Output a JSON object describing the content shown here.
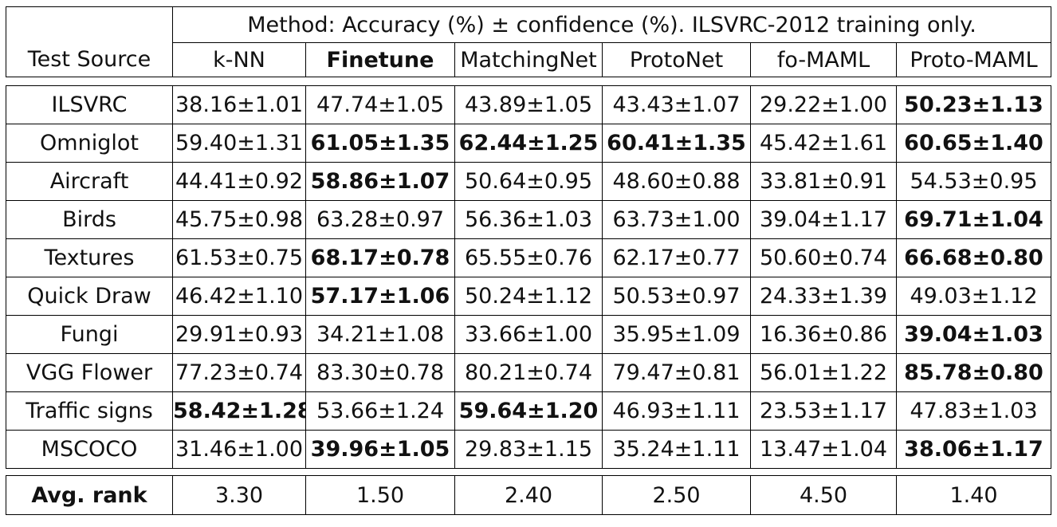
{
  "header": {
    "caption": "Method: Accuracy (%) ± confidence (%). ILSVRC-2012 training only.",
    "source_label": "Test Source",
    "methods": [
      {
        "label": "k-NN",
        "bold": false
      },
      {
        "label": "Finetune",
        "bold": true
      },
      {
        "label": "MatchingNet",
        "bold": false
      },
      {
        "label": "ProtoNet",
        "bold": false
      },
      {
        "label": "fo-MAML",
        "bold": false
      },
      {
        "label": "Proto-MAML",
        "bold": false
      }
    ]
  },
  "rows": [
    {
      "source": "ILSVRC",
      "cells": [
        {
          "v": "38.16±1.01",
          "b": false
        },
        {
          "v": "47.74±1.05",
          "b": false
        },
        {
          "v": "43.89±1.05",
          "b": false
        },
        {
          "v": "43.43±1.07",
          "b": false
        },
        {
          "v": "29.22±1.00",
          "b": false
        },
        {
          "v": "50.23±1.13",
          "b": true
        }
      ]
    },
    {
      "source": "Omniglot",
      "cells": [
        {
          "v": "59.40±1.31",
          "b": false
        },
        {
          "v": "61.05±1.35",
          "b": true
        },
        {
          "v": "62.44±1.25",
          "b": true
        },
        {
          "v": "60.41±1.35",
          "b": true
        },
        {
          "v": "45.42±1.61",
          "b": false
        },
        {
          "v": "60.65±1.40",
          "b": true
        }
      ]
    },
    {
      "source": "Aircraft",
      "cells": [
        {
          "v": "44.41±0.92",
          "b": false
        },
        {
          "v": "58.86±1.07",
          "b": true
        },
        {
          "v": "50.64±0.95",
          "b": false
        },
        {
          "v": "48.60±0.88",
          "b": false
        },
        {
          "v": "33.81±0.91",
          "b": false
        },
        {
          "v": "54.53±0.95",
          "b": false
        }
      ]
    },
    {
      "source": "Birds",
      "cells": [
        {
          "v": "45.75±0.98",
          "b": false
        },
        {
          "v": "63.28±0.97",
          "b": false
        },
        {
          "v": "56.36±1.03",
          "b": false
        },
        {
          "v": "63.73±1.00",
          "b": false
        },
        {
          "v": "39.04±1.17",
          "b": false
        },
        {
          "v": "69.71±1.04",
          "b": true
        }
      ]
    },
    {
      "source": "Textures",
      "cells": [
        {
          "v": "61.53±0.75",
          "b": false
        },
        {
          "v": "68.17±0.78",
          "b": true
        },
        {
          "v": "65.55±0.76",
          "b": false
        },
        {
          "v": "62.17±0.77",
          "b": false
        },
        {
          "v": "50.60±0.74",
          "b": false
        },
        {
          "v": "66.68±0.80",
          "b": true
        }
      ]
    },
    {
      "source": "Quick Draw",
      "cells": [
        {
          "v": "46.42±1.10",
          "b": false
        },
        {
          "v": "57.17±1.06",
          "b": true
        },
        {
          "v": "50.24±1.12",
          "b": false
        },
        {
          "v": "50.53±0.97",
          "b": false
        },
        {
          "v": "24.33±1.39",
          "b": false
        },
        {
          "v": "49.03±1.12",
          "b": false
        }
      ]
    },
    {
      "source": "Fungi",
      "cells": [
        {
          "v": "29.91±0.93",
          "b": false
        },
        {
          "v": "34.21±1.08",
          "b": false
        },
        {
          "v": "33.66±1.00",
          "b": false
        },
        {
          "v": "35.95±1.09",
          "b": false
        },
        {
          "v": "16.36±0.86",
          "b": false
        },
        {
          "v": "39.04±1.03",
          "b": true
        }
      ]
    },
    {
      "source": "VGG Flower",
      "cells": [
        {
          "v": "77.23±0.74",
          "b": false
        },
        {
          "v": "83.30±0.78",
          "b": false
        },
        {
          "v": "80.21±0.74",
          "b": false
        },
        {
          "v": "79.47±0.81",
          "b": false
        },
        {
          "v": "56.01±1.22",
          "b": false
        },
        {
          "v": "85.78±0.80",
          "b": true
        }
      ]
    },
    {
      "source": "Traffic signs",
      "cells": [
        {
          "v": "58.42±1.28",
          "b": true
        },
        {
          "v": "53.66±1.24",
          "b": false
        },
        {
          "v": "59.64±1.20",
          "b": true
        },
        {
          "v": "46.93±1.11",
          "b": false
        },
        {
          "v": "23.53±1.17",
          "b": false
        },
        {
          "v": "47.83±1.03",
          "b": false
        }
      ]
    },
    {
      "source": "MSCOCO",
      "cells": [
        {
          "v": "31.46±1.00",
          "b": false
        },
        {
          "v": "39.96±1.05",
          "b": true
        },
        {
          "v": "29.83±1.15",
          "b": false
        },
        {
          "v": "35.24±1.11",
          "b": false
        },
        {
          "v": "13.47±1.04",
          "b": false
        },
        {
          "v": "38.06±1.17",
          "b": true
        }
      ]
    }
  ],
  "footer": {
    "label": "Avg. rank",
    "values": [
      "3.30",
      "1.50",
      "2.40",
      "2.50",
      "4.50",
      "1.40"
    ]
  }
}
